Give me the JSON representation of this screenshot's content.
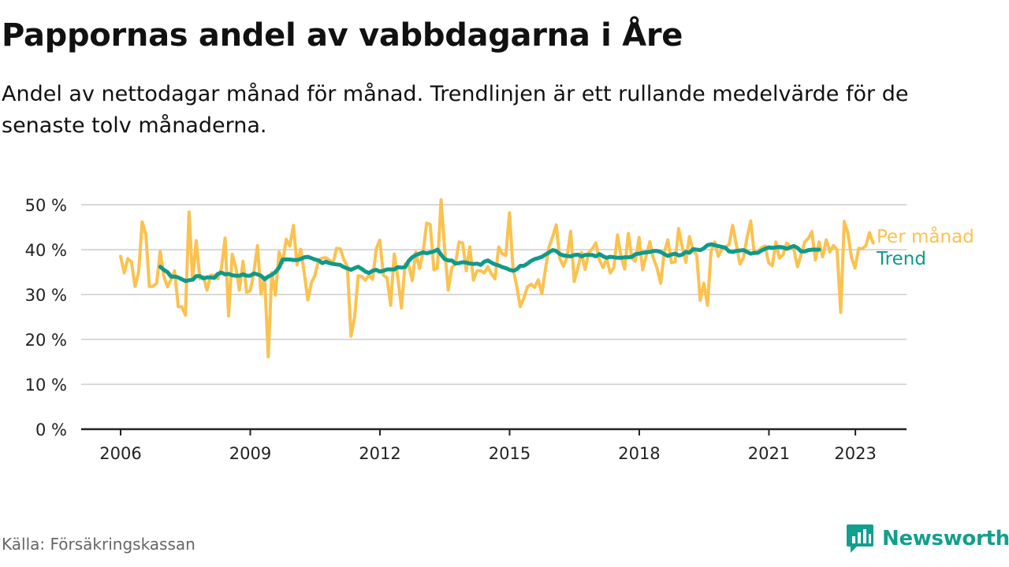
{
  "title": "Pappornas andel av vabbdagarna i Åre",
  "subtitle": "Andel av nettodagar månad för månad. Trendlinjen är ett rullande medelvärde för de senaste tolv månaderna.",
  "source": "Källa: Försäkringskassan",
  "brand": {
    "name": "Newsworthy",
    "logo_icon": "bar-chart-speech-icon"
  },
  "colors": {
    "monthly": "#fbc24f",
    "trend": "#11998a",
    "grid": "#d9d9d9",
    "axis": "#222222",
    "brand": "#139f8e"
  },
  "chart_data": {
    "type": "line",
    "title": "Pappornas andel av vabbdagarna i Åre",
    "xlabel": "",
    "ylabel": "",
    "ylim": [
      0,
      50
    ],
    "y_ticks": [
      0,
      10,
      20,
      30,
      40,
      50
    ],
    "y_tick_labels": [
      "0 %",
      "10 %",
      "20 %",
      "30 %",
      "40 %",
      "50 %"
    ],
    "x_ticks": [
      2006,
      2009,
      2012,
      2015,
      2018,
      2021,
      2023
    ],
    "x_tick_labels": [
      "2006",
      "2009",
      "2012",
      "2015",
      "2018",
      "2021",
      "2023"
    ],
    "xlim": [
      2005.1,
      2024.2
    ],
    "legend_position": "right-end-of-lines",
    "series": [
      {
        "name": "Per månad",
        "color": "#fbc24f",
        "start": 2006.0,
        "step": 0.0833,
        "values": [
          38.5,
          34.8,
          38.0,
          37.3,
          31.8,
          34.9,
          46.2,
          43.4,
          31.8,
          31.8,
          32.5,
          39.6,
          34.1,
          31.7,
          33.3,
          35.3,
          27.3,
          27.3,
          25.4,
          48.4,
          33.2,
          42.0,
          33.5,
          34.0,
          31.0,
          34.3,
          34.3,
          33.5,
          35.9,
          42.6,
          25.2,
          39.0,
          36.0,
          31.0,
          37.4,
          30.5,
          30.8,
          34.9,
          40.9,
          30.1,
          33.9,
          16.1,
          34.9,
          29.9,
          39.5,
          37.0,
          42.3,
          40.8,
          45.4,
          36.6,
          40.1,
          34.9,
          28.8,
          32.7,
          34.3,
          37.7,
          38.1,
          38.2,
          37.7,
          36.9,
          40.3,
          40.2,
          37.8,
          36.1,
          20.7,
          25.0,
          34.2,
          34.0,
          33.2,
          34.3,
          33.4,
          40.2,
          42.1,
          34.3,
          33.7,
          27.6,
          39.0,
          33.8,
          27.0,
          36.8,
          36.6,
          33.1,
          39.5,
          35.8,
          39.3,
          45.9,
          45.6,
          35.5,
          35.9,
          51.1,
          40.2,
          31.0,
          36.0,
          36.9,
          41.7,
          41.5,
          35.3,
          40.6,
          33.2,
          35.3,
          35.3,
          34.8,
          36.2,
          34.6,
          33.5,
          40.6,
          39.1,
          38.7,
          48.2,
          35.8,
          32.0,
          27.3,
          29.2,
          31.7,
          32.3,
          31.6,
          33.3,
          30.2,
          35.6,
          40.6,
          42.9,
          45.5,
          38.0,
          36.3,
          38.4,
          44.1,
          32.9,
          36.0,
          39.4,
          35.6,
          39.3,
          40.2,
          41.5,
          37.7,
          36.0,
          38.0,
          34.8,
          36.0,
          43.3,
          38.4,
          35.7,
          43.6,
          38.1,
          37.4,
          42.7,
          35.5,
          38.7,
          41.8,
          38.0,
          35.9,
          32.5,
          39.4,
          42.2,
          37.1,
          37.3,
          44.7,
          40.6,
          37.2,
          42.9,
          39.8,
          38.8,
          28.7,
          32.5,
          27.6,
          39.6,
          41.7,
          38.5,
          40.1,
          40.6,
          41.1,
          45.4,
          41.2,
          36.8,
          38.2,
          42.7,
          46.4,
          39.1,
          39.6,
          40.4,
          40.8,
          37.1,
          36.4,
          41.7,
          38.1,
          38.9,
          41.5,
          40.7,
          40.0,
          36.2,
          38.9,
          41.7,
          42.5,
          44.0,
          37.7,
          41.7,
          38.4,
          42.2,
          39.5,
          40.9,
          40.0,
          26.0,
          46.3,
          43.7,
          38.2,
          35.9,
          40.3,
          40.2,
          40.9,
          43.8,
          41.5
        ]
      },
      {
        "name": "Trend",
        "color": "#11998a",
        "start": 2006.917,
        "step": 0.0833,
        "values": [
          36.2,
          35.5,
          35.0,
          34.0,
          34.0,
          33.8,
          33.4,
          33.0,
          33.2,
          33.3,
          34.1,
          34.1,
          33.6,
          33.8,
          33.8,
          33.7,
          34.6,
          34.9,
          34.5,
          34.6,
          34.3,
          34.2,
          34.2,
          34.5,
          34.2,
          34.2,
          34.7,
          34.5,
          34.2,
          33.4,
          34.0,
          34.4,
          35.0,
          36.0,
          37.8,
          37.8,
          37.8,
          37.7,
          37.7,
          37.9,
          38.3,
          38.4,
          38.1,
          37.8,
          37.6,
          37.0,
          37.3,
          37.0,
          36.8,
          36.7,
          36.6,
          36.1,
          35.8,
          35.5,
          35.9,
          36.2,
          35.7,
          35.1,
          34.8,
          35.3,
          35.5,
          35.1,
          35.3,
          35.6,
          35.6,
          35.6,
          36.1,
          36.0,
          36.1,
          37.5,
          38.3,
          38.8,
          39.1,
          39.4,
          39.2,
          39.4,
          39.6,
          40.0,
          38.9,
          37.9,
          37.6,
          37.6,
          36.9,
          37.0,
          37.2,
          37.1,
          36.9,
          36.8,
          36.9,
          36.6,
          37.3,
          37.6,
          37.1,
          36.7,
          36.5,
          36.1,
          35.9,
          35.5,
          35.3,
          35.6,
          36.4,
          36.4,
          36.9,
          37.5,
          37.9,
          38.1,
          38.4,
          38.9,
          39.4,
          39.9,
          39.7,
          39.0,
          38.7,
          38.6,
          38.5,
          38.8,
          38.9,
          38.5,
          38.8,
          38.8,
          38.8,
          38.5,
          39.0,
          38.5,
          38.2,
          38.4,
          38.3,
          38.2,
          38.2,
          38.3,
          38.3,
          38.4,
          39.0,
          39.1,
          39.3,
          39.4,
          39.5,
          39.7,
          39.7,
          39.5,
          39.0,
          38.6,
          38.9,
          39.1,
          38.7,
          38.9,
          39.5,
          39.3,
          40.1,
          40.0,
          39.9,
          40.3,
          41.0,
          41.2,
          41.0,
          40.8,
          40.6,
          40.4,
          39.6,
          39.5,
          39.7,
          39.8,
          39.9,
          39.5,
          39.1,
          39.3,
          39.3,
          39.8,
          40.2,
          40.5,
          40.4,
          40.5,
          40.6,
          40.5,
          40.2,
          40.5,
          40.8,
          40.4,
          39.6,
          39.6,
          39.9,
          40.0,
          40.0,
          40.0
        ]
      }
    ]
  }
}
